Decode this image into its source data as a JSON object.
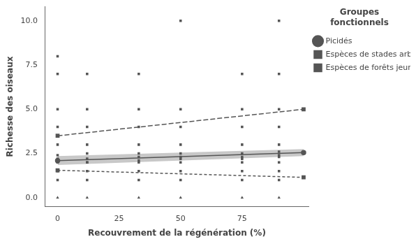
{
  "chart_data": {
    "type": "scatter",
    "xlabel": "Recouvrement de la régénération (%)",
    "ylabel": "Richesse des oiseaux",
    "legend_title": "Groupes\nfonctionnels",
    "legend": "right",
    "grid": false,
    "xlim": [
      -5,
      102
    ],
    "ylim": [
      -0.5,
      10.8
    ],
    "xticks": [
      0,
      25,
      50,
      75
    ],
    "yticks": [
      {
        "value": 0.0,
        "label": "0.0"
      },
      2.5,
      {
        "value": 5.0,
        "label": "5.0"
      },
      7.5,
      {
        "value": 10.0,
        "label": "10.0"
      }
    ],
    "series": [
      {
        "type": "scatter",
        "color": "#555555",
        "marker": "square",
        "x": [
          0,
          0,
          0,
          0,
          0,
          0,
          12,
          12,
          12,
          12,
          12,
          33,
          33,
          33,
          33,
          33,
          50,
          50,
          50,
          50,
          50,
          75,
          75,
          75,
          75,
          75,
          90,
          90,
          90,
          90,
          90,
          90
        ],
        "values": [
          2,
          3,
          4,
          5,
          7,
          8,
          2,
          3,
          4,
          5,
          7,
          2,
          3,
          4,
          5,
          7,
          2,
          3,
          4,
          5,
          10,
          2,
          3,
          4,
          5,
          7,
          2,
          3,
          4,
          5,
          7,
          10
        ]
      },
      {
        "type": "scatter",
        "color": "#555555",
        "marker": "square",
        "x": [
          0,
          0,
          12,
          12,
          33,
          33,
          50,
          50,
          75,
          75,
          90,
          90
        ],
        "values": [
          1,
          1.5,
          1,
          1.5,
          1,
          1.5,
          1,
          1.5,
          1,
          1.5,
          1,
          1.5
        ]
      },
      {
        "type": "scatter",
        "color": "#555555",
        "marker": "triangle",
        "x": [
          0,
          12,
          33,
          50,
          75,
          90
        ],
        "values": [
          0,
          0,
          0,
          0,
          0,
          0
        ]
      },
      {
        "type": "scatter",
        "color": "#555555",
        "marker": "square",
        "x": [
          0,
          0,
          0,
          12,
          12,
          12,
          33,
          33,
          33,
          50,
          50,
          50,
          75,
          75,
          75,
          90,
          90,
          90
        ],
        "values": [
          2,
          2.2,
          2.4,
          2,
          2.2,
          2.5,
          2.1,
          2.3,
          2.5,
          2.2,
          2.3,
          2.5,
          2.2,
          2.3,
          2.5,
          2.3,
          2.4,
          2.6
        ]
      },
      {
        "type": "band",
        "color": "#c8c8c8",
        "x": [
          0,
          100
        ],
        "lower": [
          1.85,
          2.35
        ],
        "upper": [
          2.35,
          2.75
        ]
      },
      {
        "type": "line",
        "name": "Picidés",
        "color": "#555555",
        "marker": "circle",
        "line_style": "solid",
        "x": [
          0,
          100
        ],
        "values": [
          2.1,
          2.55
        ]
      },
      {
        "type": "line",
        "name": "Espèces de stades arbustifs",
        "color": "#555555",
        "marker": "square",
        "line_style": "dashed",
        "x": [
          0,
          100
        ],
        "values": [
          1.55,
          1.15
        ]
      },
      {
        "type": "line",
        "name": "Espèces de forêts jeunes",
        "color": "#555555",
        "marker": "square",
        "line_style": "long dashed",
        "x": [
          0,
          100
        ],
        "values": [
          3.5,
          5.0
        ]
      }
    ]
  }
}
